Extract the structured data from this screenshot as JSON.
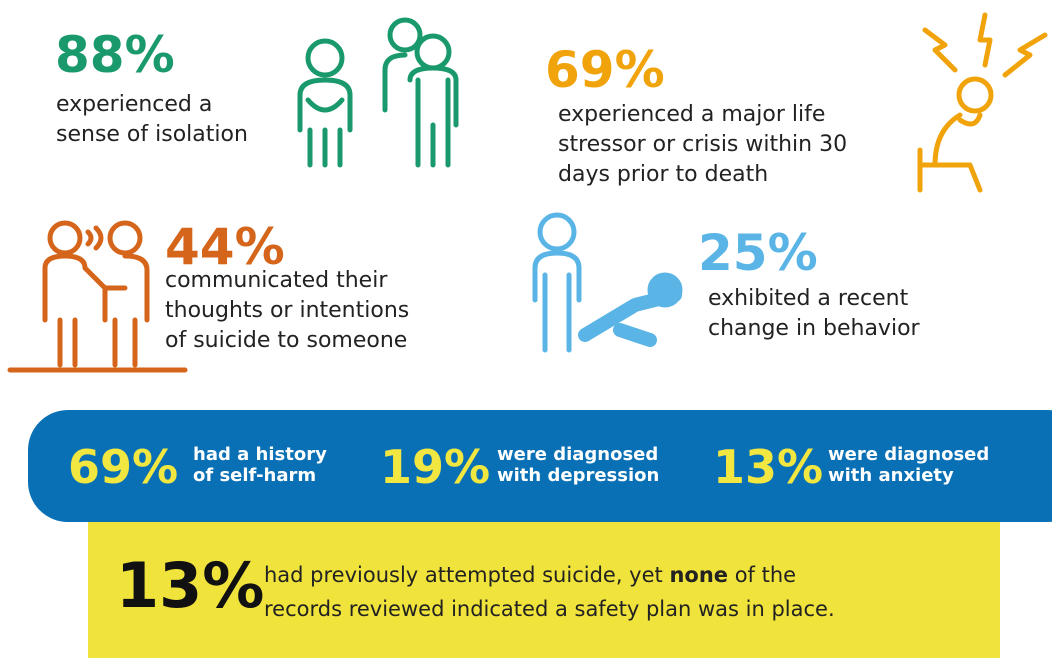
{
  "stats": [
    {
      "percent": "88%",
      "lines": [
        "experienced a",
        "sense of isolation"
      ]
    },
    {
      "percent": "69%",
      "lines": [
        "experienced a major life",
        "stressor or crisis within 30",
        "days prior to death"
      ]
    },
    {
      "percent": "44%",
      "lines": [
        "communicated their",
        "thoughts or intentions",
        "of suicide to someone"
      ]
    },
    {
      "percent": "25%",
      "lines": [
        "exhibited a recent",
        "change in behavior"
      ]
    }
  ],
  "band": [
    {
      "percent": "69%",
      "lines": [
        "had a history",
        "of self-harm"
      ]
    },
    {
      "percent": "19%",
      "lines": [
        "were diagnosed",
        "with depression"
      ]
    },
    {
      "percent": "13%",
      "lines": [
        "were diagnosed",
        "with anxiety"
      ]
    }
  ],
  "footer": {
    "percent": "13%",
    "line1": [
      "had previously attempted suicide, yet ",
      "none",
      " of the"
    ],
    "line2": "records reviewed indicated a safety plan was in place."
  }
}
